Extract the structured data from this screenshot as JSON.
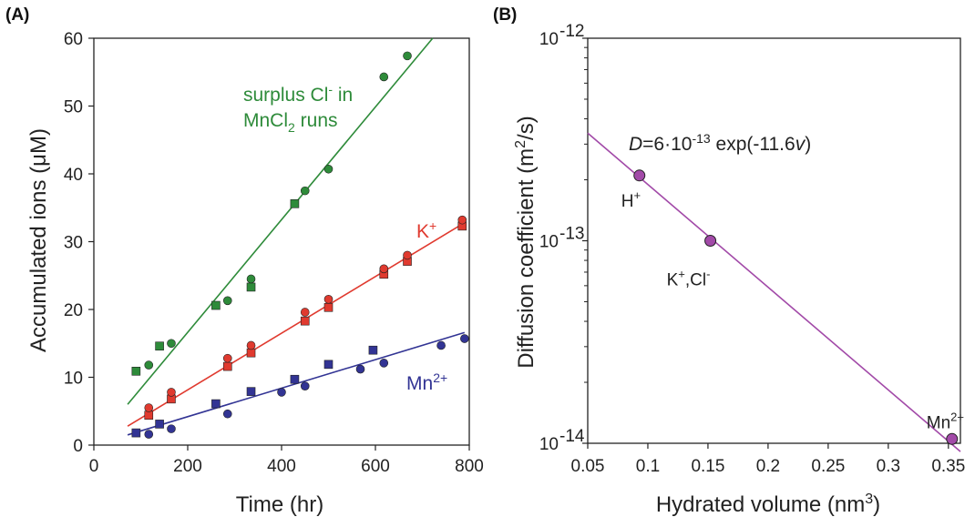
{
  "chart_data": [
    {
      "type": "scatter",
      "panel_label": "(A)",
      "xlabel": "Time (hr)",
      "ylabel_parts": [
        "Accumulated ions (",
        "μ",
        "M)"
      ],
      "xlim": [
        0,
        800
      ],
      "ylim": [
        0,
        60
      ],
      "xticks": [
        "0",
        "200",
        "400",
        "600",
        "800"
      ],
      "yticks": [
        "0",
        "10",
        "20",
        "30",
        "40",
        "50",
        "60"
      ],
      "grid": false,
      "series": [
        {
          "name_parts": [
            "surplus Cl",
            "-",
            " in"
          ],
          "name_line2_parts": [
            "MnCl",
            "2",
            " runs"
          ],
          "color": "#2e8b3a",
          "circles": [
            [
              117,
              11.8
            ],
            [
              165,
              15.0
            ],
            [
              285,
              21.3
            ],
            [
              335,
              24.5
            ],
            [
              450,
              37.5
            ],
            [
              500,
              40.7
            ],
            [
              618,
              54.3
            ],
            [
              668,
              57.4
            ]
          ],
          "squares": [
            [
              90,
              10.9
            ],
            [
              140,
              14.6
            ],
            [
              260,
              20.6
            ],
            [
              335,
              23.3
            ],
            [
              428,
              35.6
            ]
          ],
          "fit": [
            [
              72,
              6.0
            ],
            [
              722,
              60.0
            ]
          ]
        },
        {
          "name_parts": [
            "K",
            "+"
          ],
          "color": "#e03a2f",
          "circles": [
            [
              117,
              5.5
            ],
            [
              165,
              7.8
            ],
            [
              285,
              12.8
            ],
            [
              335,
              14.7
            ],
            [
              450,
              19.6
            ],
            [
              500,
              21.5
            ],
            [
              618,
              26.0
            ],
            [
              668,
              28.0
            ],
            [
              785,
              33.2
            ]
          ],
          "squares": [
            [
              117,
              4.4
            ],
            [
              165,
              6.8
            ],
            [
              285,
              11.6
            ],
            [
              335,
              13.6
            ],
            [
              450,
              18.3
            ],
            [
              500,
              20.3
            ],
            [
              618,
              25.2
            ],
            [
              668,
              27.1
            ],
            [
              785,
              32.3
            ]
          ],
          "fit": [
            [
              72,
              2.8
            ],
            [
              790,
              32.8
            ]
          ]
        },
        {
          "name_parts": [
            "Mn",
            "2+"
          ],
          "color": "#323494",
          "circles": [
            [
              117,
              1.6
            ],
            [
              165,
              2.4
            ],
            [
              285,
              4.6
            ],
            [
              400,
              7.8
            ],
            [
              450,
              8.7
            ],
            [
              568,
              11.2
            ],
            [
              618,
              12.1
            ],
            [
              740,
              14.7
            ],
            [
              790,
              15.7
            ]
          ],
          "squares": [
            [
              90,
              1.8
            ],
            [
              140,
              3.1
            ],
            [
              260,
              6.1
            ],
            [
              335,
              7.9
            ],
            [
              428,
              9.7
            ],
            [
              500,
              11.9
            ],
            [
              595,
              14.0
            ]
          ],
          "fit": [
            [
              72,
              1.5
            ],
            [
              790,
              16.6
            ]
          ]
        }
      ]
    },
    {
      "type": "line",
      "panel_label": "(B)",
      "xlabel_parts": [
        "Hydrated volume  (nm",
        "3",
        ")"
      ],
      "ylabel_parts": [
        "Diffusion coefficient  (m",
        "2",
        "/s)"
      ],
      "xlim": [
        0.05,
        0.36
      ],
      "ylim": [
        1e-14,
        1e-12
      ],
      "yscale": "log",
      "xticks": [
        "0.05",
        "0.1",
        "0.15",
        "0.2",
        "0.25",
        "0.3",
        "0.35"
      ],
      "xtick_values": [
        0.05,
        0.1,
        0.15,
        0.2,
        0.25,
        0.3,
        0.35
      ],
      "yticks": [
        {
          "base": "10",
          "exp": "-14",
          "value": 1e-14
        },
        {
          "base": "10",
          "exp": "-13",
          "value": 1e-13
        },
        {
          "base": "10",
          "exp": "-12",
          "value": 1e-12
        }
      ],
      "grid": false,
      "line_color": "#a24aa8",
      "point_color": "#a24aa8",
      "equation_parts": [
        "D",
        "=6·10",
        "-13",
        " exp(-11.6",
        "v",
        ")"
      ],
      "fit_endpoints": [
        [
          0.05,
          3.4e-13
        ],
        [
          0.36,
          9.1e-15
        ]
      ],
      "points": [
        {
          "x": 0.093,
          "y": 2.1e-13,
          "label_parts": [
            "H",
            "+"
          ]
        },
        {
          "x": 0.152,
          "y": 1e-13,
          "label_parts": [
            "K",
            "+",
            ",Cl",
            "-"
          ]
        },
        {
          "x": 0.353,
          "y": 1.05e-14,
          "label_parts": [
            "Mn",
            "2+"
          ]
        }
      ]
    }
  ]
}
